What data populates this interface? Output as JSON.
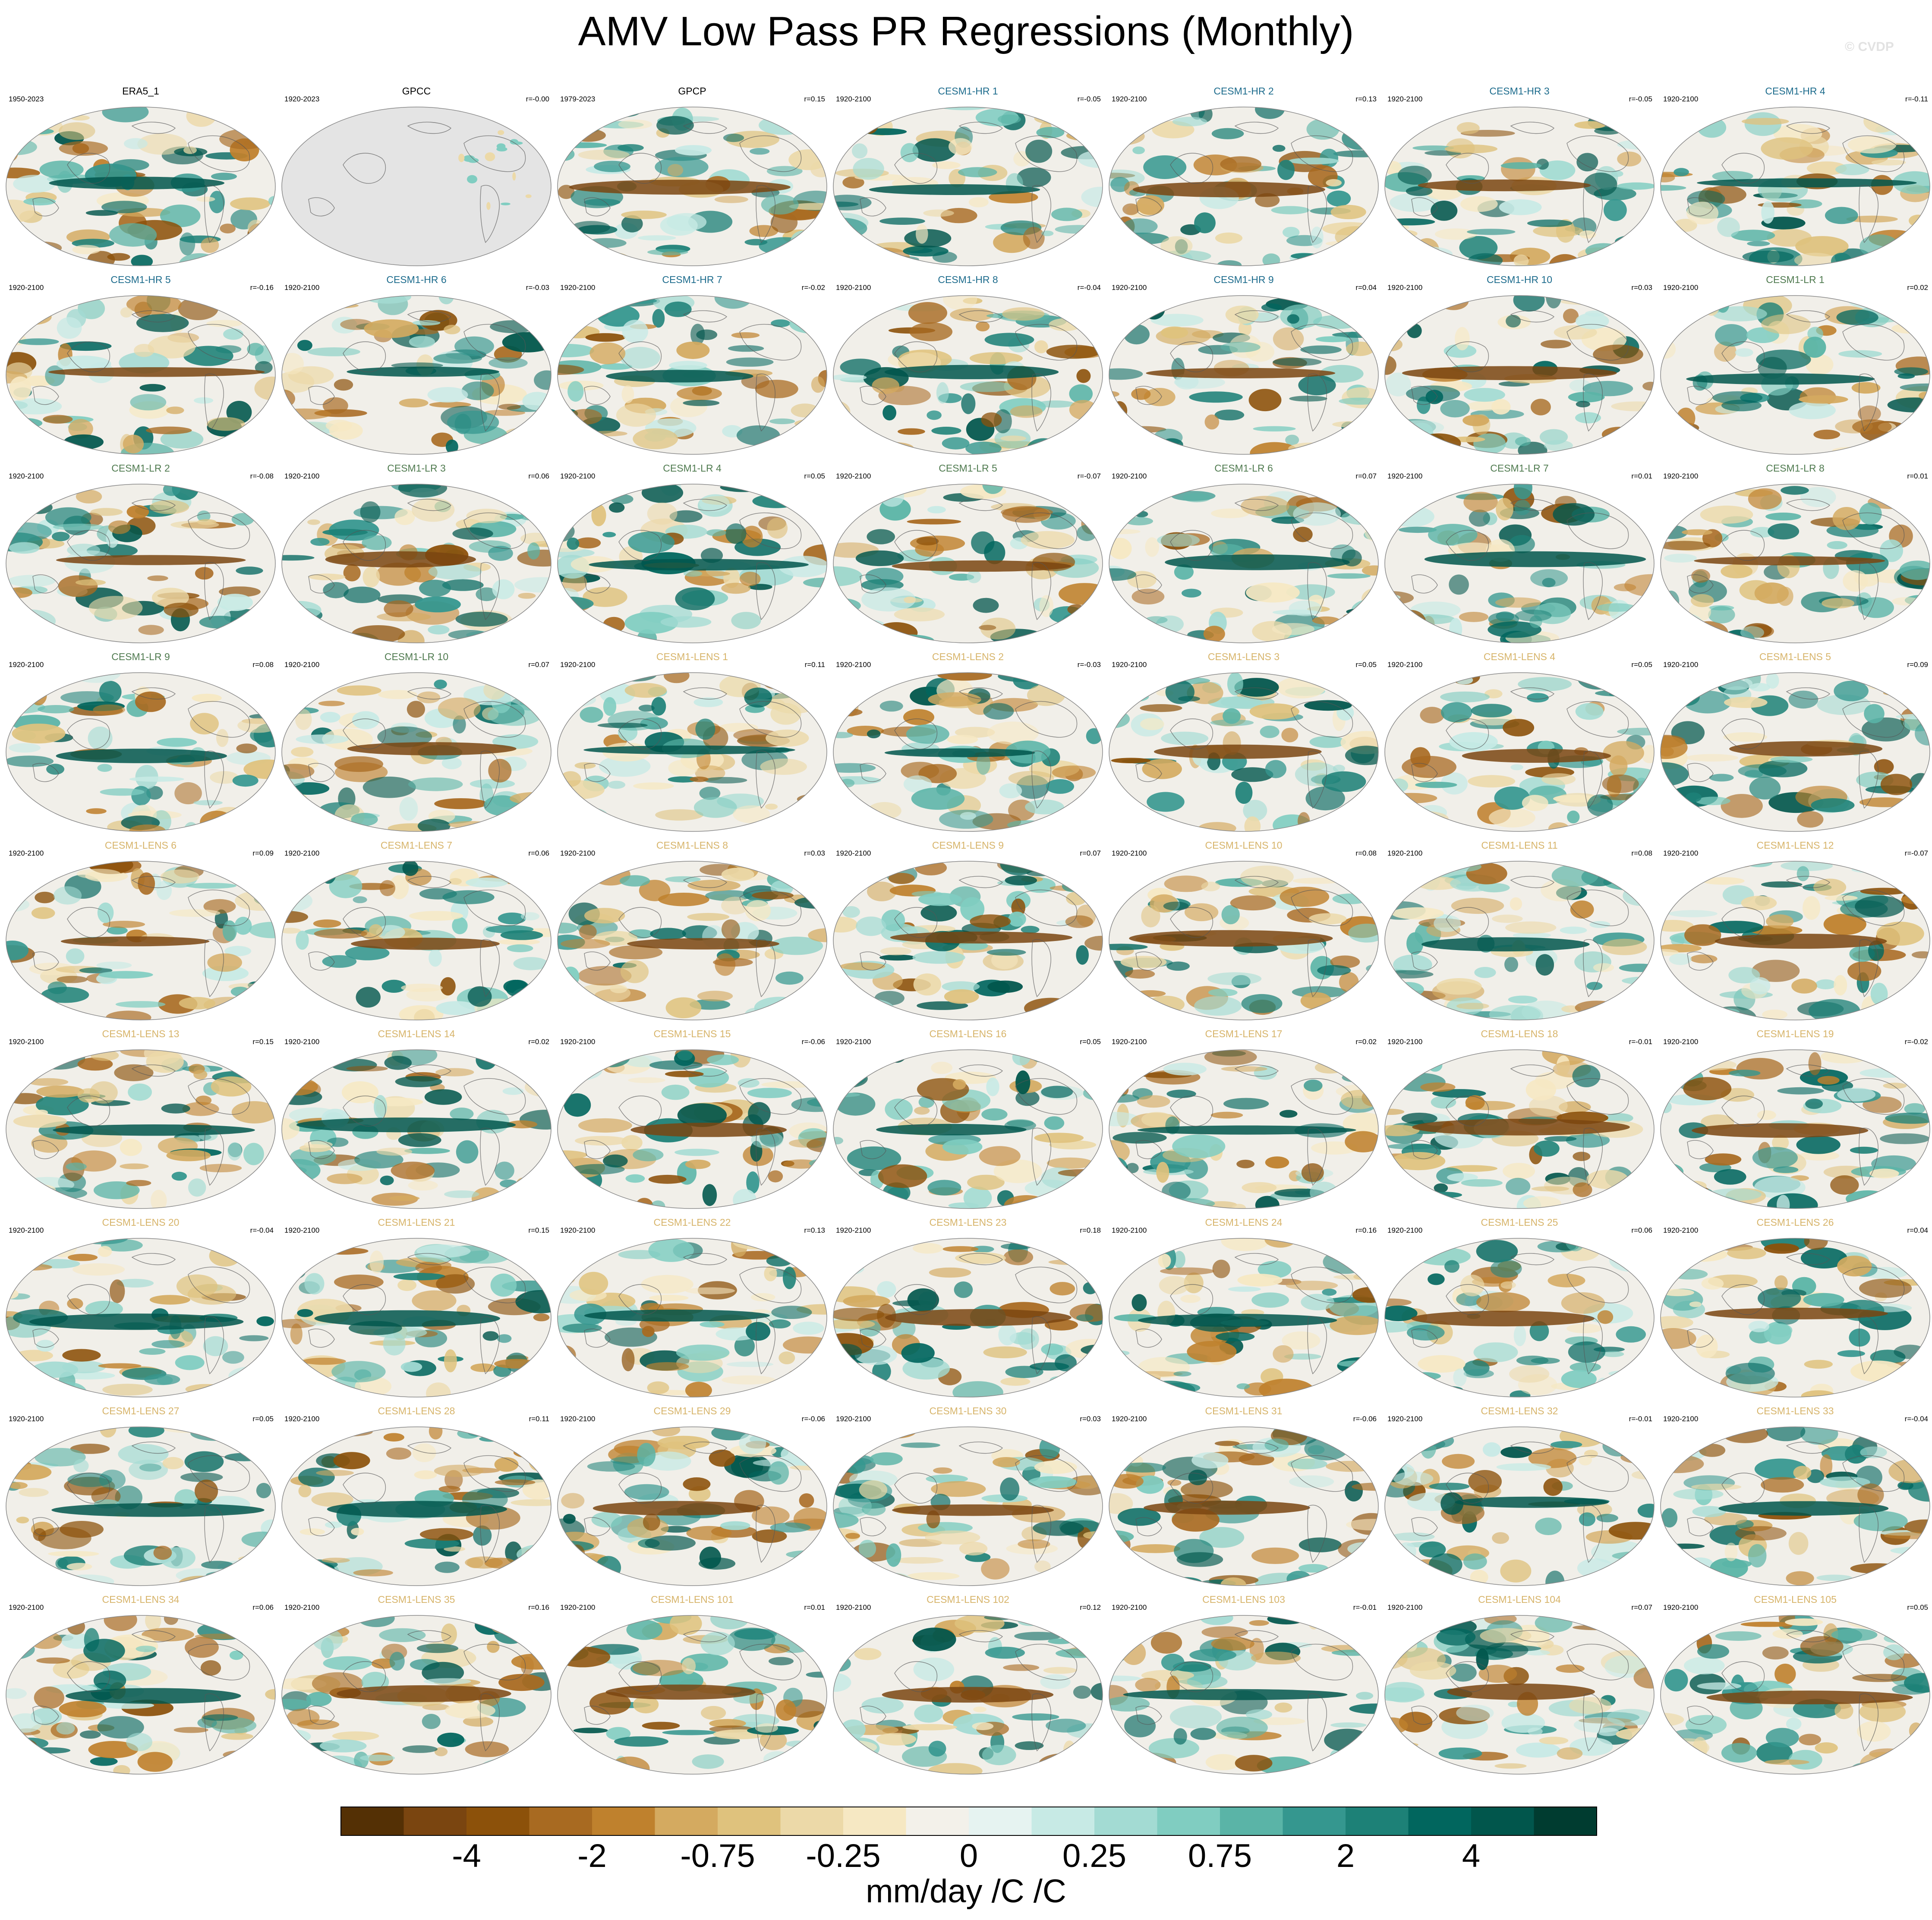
{
  "title": "AMV Low Pass PR Regressions (Monthly)",
  "watermark": "© CVDP",
  "chart_data": {
    "type": "heatmap",
    "description_kind": "small-multiples global regression maps",
    "colorbar": {
      "label": "mm/day /C /C",
      "tick_labels": [
        "-4",
        "-2",
        "-0.75",
        "-0.25",
        "0",
        "0.25",
        "0.75",
        "2",
        "4"
      ],
      "colors": [
        "#543005",
        "#7a4510",
        "#8c510a",
        "#a86a21",
        "#bf812d",
        "#d4aa60",
        "#dfc27d",
        "#ecd9a8",
        "#f6e8c3",
        "#f3f1ea",
        "#e6f3f1",
        "#c7eae5",
        "#a3dbd3",
        "#80cdc1",
        "#5ab4a7",
        "#35978f",
        "#1d8177",
        "#01665e",
        "#01564c",
        "#003c30"
      ]
    },
    "panels": [
      {
        "name": "ERA5_1",
        "years": "1950-2023",
        "r": "",
        "color": "#000000"
      },
      {
        "name": "GPCC",
        "years": "1920-2023",
        "r": "r=-0.00",
        "color": "#000000"
      },
      {
        "name": "GPCP",
        "years": "1979-2023",
        "r": "r=0.15",
        "color": "#000000"
      },
      {
        "name": "CESM1-HR 1",
        "years": "1920-2100",
        "r": "r=-0.05",
        "color": "#1c6b8c"
      },
      {
        "name": "CESM1-HR 2",
        "years": "1920-2100",
        "r": "r=0.13",
        "color": "#1c6b8c"
      },
      {
        "name": "CESM1-HR 3",
        "years": "1920-2100",
        "r": "r=-0.05",
        "color": "#1c6b8c"
      },
      {
        "name": "CESM1-HR 4",
        "years": "1920-2100",
        "r": "r=-0.11",
        "color": "#1c6b8c"
      },
      {
        "name": "CESM1-HR 5",
        "years": "1920-2100",
        "r": "r=-0.16",
        "color": "#1c6b8c"
      },
      {
        "name": "CESM1-HR 6",
        "years": "1920-2100",
        "r": "r=-0.03",
        "color": "#1c6b8c"
      },
      {
        "name": "CESM1-HR 7",
        "years": "1920-2100",
        "r": "r=-0.02",
        "color": "#1c6b8c"
      },
      {
        "name": "CESM1-HR 8",
        "years": "1920-2100",
        "r": "r=-0.04",
        "color": "#1c6b8c"
      },
      {
        "name": "CESM1-HR 9",
        "years": "1920-2100",
        "r": "r=0.04",
        "color": "#1c6b8c"
      },
      {
        "name": "CESM1-HR 10",
        "years": "1920-2100",
        "r": "r=0.03",
        "color": "#1c6b8c"
      },
      {
        "name": "CESM1-LR 1",
        "years": "1920-2100",
        "r": "r=0.02",
        "color": "#4f7a4f"
      },
      {
        "name": "CESM1-LR 2",
        "years": "1920-2100",
        "r": "r=-0.08",
        "color": "#4f7a4f"
      },
      {
        "name": "CESM1-LR 3",
        "years": "1920-2100",
        "r": "r=0.06",
        "color": "#4f7a4f"
      },
      {
        "name": "CESM1-LR 4",
        "years": "1920-2100",
        "r": "r=0.05",
        "color": "#4f7a4f"
      },
      {
        "name": "CESM1-LR 5",
        "years": "1920-2100",
        "r": "r=-0.07",
        "color": "#4f7a4f"
      },
      {
        "name": "CESM1-LR 6",
        "years": "1920-2100",
        "r": "r=0.07",
        "color": "#4f7a4f"
      },
      {
        "name": "CESM1-LR 7",
        "years": "1920-2100",
        "r": "r=0.01",
        "color": "#4f7a4f"
      },
      {
        "name": "CESM1-LR 8",
        "years": "1920-2100",
        "r": "r=0.01",
        "color": "#4f7a4f"
      },
      {
        "name": "CESM1-LR 9",
        "years": "1920-2100",
        "r": "r=0.08",
        "color": "#4f7a4f"
      },
      {
        "name": "CESM1-LR 10",
        "years": "1920-2100",
        "r": "r=0.07",
        "color": "#4f7a4f"
      },
      {
        "name": "CESM1-LENS 1",
        "years": "1920-2100",
        "r": "r=0.11",
        "color": "#d7b46a"
      },
      {
        "name": "CESM1-LENS 2",
        "years": "1920-2100",
        "r": "r=-0.03",
        "color": "#d7b46a"
      },
      {
        "name": "CESM1-LENS 3",
        "years": "1920-2100",
        "r": "r=0.05",
        "color": "#d7b46a"
      },
      {
        "name": "CESM1-LENS 4",
        "years": "1920-2100",
        "r": "r=0.05",
        "color": "#d7b46a"
      },
      {
        "name": "CESM1-LENS 5",
        "years": "1920-2100",
        "r": "r=0.09",
        "color": "#d7b46a"
      },
      {
        "name": "CESM1-LENS 6",
        "years": "1920-2100",
        "r": "r=0.09",
        "color": "#d7b46a"
      },
      {
        "name": "CESM1-LENS 7",
        "years": "1920-2100",
        "r": "r=0.06",
        "color": "#d7b46a"
      },
      {
        "name": "CESM1-LENS 8",
        "years": "1920-2100",
        "r": "r=0.03",
        "color": "#d7b46a"
      },
      {
        "name": "CESM1-LENS 9",
        "years": "1920-2100",
        "r": "r=0.07",
        "color": "#d7b46a"
      },
      {
        "name": "CESM1-LENS 10",
        "years": "1920-2100",
        "r": "r=0.08",
        "color": "#d7b46a"
      },
      {
        "name": "CESM1-LENS 11",
        "years": "1920-2100",
        "r": "r=0.08",
        "color": "#d7b46a"
      },
      {
        "name": "CESM1-LENS 12",
        "years": "1920-2100",
        "r": "r=-0.07",
        "color": "#d7b46a"
      },
      {
        "name": "CESM1-LENS 13",
        "years": "1920-2100",
        "r": "r=0.15",
        "color": "#d7b46a"
      },
      {
        "name": "CESM1-LENS 14",
        "years": "1920-2100",
        "r": "r=0.02",
        "color": "#d7b46a"
      },
      {
        "name": "CESM1-LENS 15",
        "years": "1920-2100",
        "r": "r=-0.06",
        "color": "#d7b46a"
      },
      {
        "name": "CESM1-LENS 16",
        "years": "1920-2100",
        "r": "r=0.05",
        "color": "#d7b46a"
      },
      {
        "name": "CESM1-LENS 17",
        "years": "1920-2100",
        "r": "r=0.02",
        "color": "#d7b46a"
      },
      {
        "name": "CESM1-LENS 18",
        "years": "1920-2100",
        "r": "r=-0.01",
        "color": "#d7b46a"
      },
      {
        "name": "CESM1-LENS 19",
        "years": "1920-2100",
        "r": "r=-0.02",
        "color": "#d7b46a"
      },
      {
        "name": "CESM1-LENS 20",
        "years": "1920-2100",
        "r": "r=-0.04",
        "color": "#d7b46a"
      },
      {
        "name": "CESM1-LENS 21",
        "years": "1920-2100",
        "r": "r=0.15",
        "color": "#d7b46a"
      },
      {
        "name": "CESM1-LENS 22",
        "years": "1920-2100",
        "r": "r=0.13",
        "color": "#d7b46a"
      },
      {
        "name": "CESM1-LENS 23",
        "years": "1920-2100",
        "r": "r=0.18",
        "color": "#d7b46a"
      },
      {
        "name": "CESM1-LENS 24",
        "years": "1920-2100",
        "r": "r=0.16",
        "color": "#d7b46a"
      },
      {
        "name": "CESM1-LENS 25",
        "years": "1920-2100",
        "r": "r=0.06",
        "color": "#d7b46a"
      },
      {
        "name": "CESM1-LENS 26",
        "years": "1920-2100",
        "r": "r=0.04",
        "color": "#d7b46a"
      },
      {
        "name": "CESM1-LENS 27",
        "years": "1920-2100",
        "r": "r=0.05",
        "color": "#d7b46a"
      },
      {
        "name": "CESM1-LENS 28",
        "years": "1920-2100",
        "r": "r=0.11",
        "color": "#d7b46a"
      },
      {
        "name": "CESM1-LENS 29",
        "years": "1920-2100",
        "r": "r=-0.06",
        "color": "#d7b46a"
      },
      {
        "name": "CESM1-LENS 30",
        "years": "1920-2100",
        "r": "r=0.03",
        "color": "#d7b46a"
      },
      {
        "name": "CESM1-LENS 31",
        "years": "1920-2100",
        "r": "r=-0.06",
        "color": "#d7b46a"
      },
      {
        "name": "CESM1-LENS 32",
        "years": "1920-2100",
        "r": "r=-0.01",
        "color": "#d7b46a"
      },
      {
        "name": "CESM1-LENS 33",
        "years": "1920-2100",
        "r": "r=-0.04",
        "color": "#d7b46a"
      },
      {
        "name": "CESM1-LENS 34",
        "years": "1920-2100",
        "r": "r=0.06",
        "color": "#d7b46a"
      },
      {
        "name": "CESM1-LENS 35",
        "years": "1920-2100",
        "r": "r=0.16",
        "color": "#d7b46a"
      },
      {
        "name": "CESM1-LENS 101",
        "years": "1920-2100",
        "r": "r=0.01",
        "color": "#d7b46a"
      },
      {
        "name": "CESM1-LENS 102",
        "years": "1920-2100",
        "r": "r=0.12",
        "color": "#d7b46a"
      },
      {
        "name": "CESM1-LENS 103",
        "years": "1920-2100",
        "r": "r=-0.01",
        "color": "#d7b46a"
      },
      {
        "name": "CESM1-LENS 104",
        "years": "1920-2100",
        "r": "r=0.07",
        "color": "#d7b46a"
      },
      {
        "name": "CESM1-LENS 105",
        "years": "1920-2100",
        "r": "r=0.05",
        "color": "#d7b46a"
      }
    ]
  }
}
